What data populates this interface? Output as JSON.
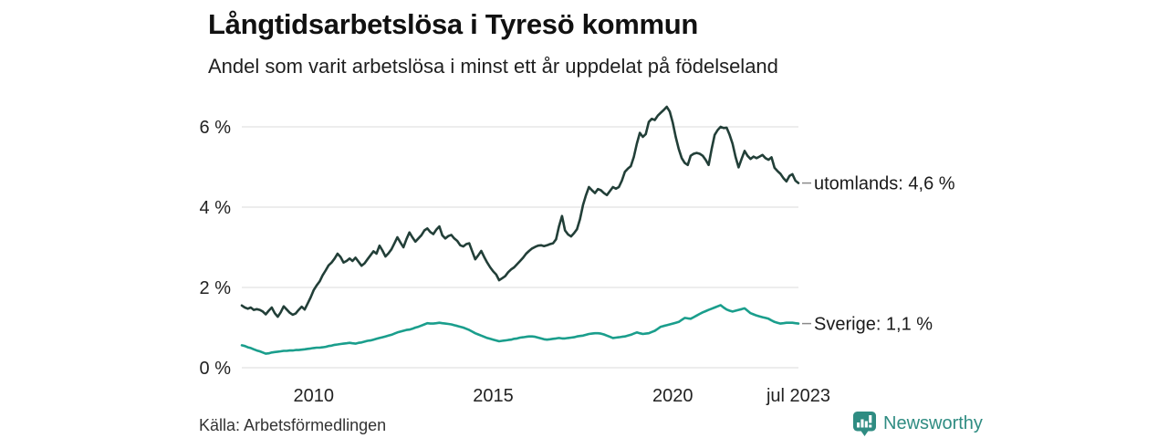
{
  "header": {
    "title": "Långtidsarbetslösa i Tyresö kommun",
    "subtitle": "Andel som varit arbetslösa i minst ett år uppdelat på födelseland"
  },
  "footer": {
    "source": "Källa: Arbetsförmedlingen",
    "brand_name": "Newsworthy",
    "brand_logo_icon": "speech-bubble-bar-chart-icon"
  },
  "colors": {
    "utomlands_line": "#223F38",
    "sverige_line": "#1A9E8C",
    "gridline": "#E2E2E2",
    "axis_text": "#222222",
    "label_text": "#1A1A1A",
    "tick_dash": "#8A8A8A",
    "brand_teal": "#2F8C82"
  },
  "chart_data": {
    "type": "line",
    "title": "Långtidsarbetslösa i Tyresö kommun",
    "subtitle": "Andel som varit arbetslösa i minst ett år uppdelat på födelseland",
    "unit": "%",
    "grid": "horizontal-only",
    "legend_position": "line-end-labels-right",
    "xlim": [
      2008.0,
      2023.58
    ],
    "ylim": [
      0,
      6.6
    ],
    "x_ticks": [
      {
        "t": 2010,
        "label": "2010"
      },
      {
        "t": 2015,
        "label": "2015"
      },
      {
        "t": 2020,
        "label": "2020"
      },
      {
        "t": 2023.5,
        "label": "jul 2023"
      }
    ],
    "y_ticks": [
      {
        "v": 0,
        "label": "0 %"
      },
      {
        "v": 2,
        "label": "2 %"
      },
      {
        "v": 4,
        "label": "4 %"
      },
      {
        "v": 6,
        "label": "6 %"
      }
    ],
    "series": [
      {
        "name": "utomlands",
        "end_label": "utomlands: 4,6 %",
        "latest_value": "4,6 %",
        "color": "#223F38",
        "start_year": 2008,
        "step_months": 1,
        "values": [
          1.55,
          1.5,
          1.47,
          1.5,
          1.44,
          1.46,
          1.44,
          1.4,
          1.33,
          1.42,
          1.5,
          1.36,
          1.27,
          1.38,
          1.53,
          1.45,
          1.37,
          1.32,
          1.35,
          1.44,
          1.52,
          1.45,
          1.6,
          1.75,
          1.93,
          2.05,
          2.15,
          2.3,
          2.42,
          2.55,
          2.62,
          2.72,
          2.84,
          2.76,
          2.62,
          2.66,
          2.72,
          2.66,
          2.74,
          2.64,
          2.54,
          2.6,
          2.7,
          2.8,
          2.9,
          2.84,
          3.04,
          2.92,
          2.77,
          2.85,
          2.95,
          3.1,
          3.25,
          3.12,
          3.0,
          3.2,
          3.37,
          3.25,
          3.14,
          3.22,
          3.3,
          3.42,
          3.47,
          3.38,
          3.33,
          3.44,
          3.52,
          3.3,
          3.22,
          3.28,
          3.31,
          3.22,
          3.16,
          3.05,
          3.02,
          3.08,
          3.1,
          2.9,
          2.7,
          2.8,
          2.91,
          2.76,
          2.62,
          2.5,
          2.4,
          2.32,
          2.18,
          2.23,
          2.28,
          2.38,
          2.45,
          2.5,
          2.58,
          2.66,
          2.74,
          2.84,
          2.91,
          2.97,
          3.01,
          3.04,
          3.05,
          3.03,
          3.05,
          3.08,
          3.1,
          3.2,
          3.52,
          3.78,
          3.42,
          3.32,
          3.27,
          3.35,
          3.45,
          3.7,
          4.05,
          4.3,
          4.5,
          4.42,
          4.35,
          4.45,
          4.42,
          4.35,
          4.3,
          4.4,
          4.5,
          4.46,
          4.5,
          4.66,
          4.88,
          4.96,
          5.02,
          5.25,
          5.58,
          5.85,
          5.75,
          5.82,
          6.12,
          6.2,
          6.17,
          6.28,
          6.35,
          6.42,
          6.5,
          6.38,
          6.1,
          5.75,
          5.45,
          5.22,
          5.1,
          5.05,
          5.28,
          5.33,
          5.35,
          5.33,
          5.28,
          5.18,
          5.05,
          5.45,
          5.8,
          5.92,
          6.0,
          5.97,
          5.98,
          5.8,
          5.58,
          5.25,
          4.99,
          5.2,
          5.4,
          5.28,
          5.2,
          5.26,
          5.22,
          5.26,
          5.3,
          5.22,
          5.18,
          5.24,
          4.98,
          4.9,
          4.83,
          4.72,
          4.64,
          4.78,
          4.82,
          4.66,
          4.6
        ]
      },
      {
        "name": "Sverige",
        "end_label": "Sverige: 1,1 %",
        "latest_value": "1,1 %",
        "color": "#1A9E8C",
        "start_year": 2008,
        "step_months": 1,
        "values": [
          0.56,
          0.54,
          0.51,
          0.49,
          0.46,
          0.43,
          0.41,
          0.38,
          0.35,
          0.36,
          0.38,
          0.39,
          0.4,
          0.41,
          0.42,
          0.42,
          0.43,
          0.43,
          0.44,
          0.44,
          0.45,
          0.46,
          0.47,
          0.48,
          0.49,
          0.5,
          0.5,
          0.51,
          0.52,
          0.54,
          0.55,
          0.57,
          0.58,
          0.59,
          0.6,
          0.61,
          0.62,
          0.61,
          0.6,
          0.62,
          0.63,
          0.65,
          0.67,
          0.68,
          0.7,
          0.72,
          0.74,
          0.76,
          0.78,
          0.8,
          0.82,
          0.85,
          0.88,
          0.9,
          0.92,
          0.94,
          0.95,
          0.97,
          1.0,
          1.02,
          1.05,
          1.08,
          1.11,
          1.1,
          1.1,
          1.11,
          1.12,
          1.11,
          1.1,
          1.09,
          1.08,
          1.06,
          1.04,
          1.02,
          1.0,
          0.97,
          0.94,
          0.9,
          0.86,
          0.83,
          0.8,
          0.77,
          0.74,
          0.72,
          0.7,
          0.68,
          0.66,
          0.67,
          0.68,
          0.69,
          0.7,
          0.72,
          0.73,
          0.75,
          0.76,
          0.77,
          0.78,
          0.78,
          0.77,
          0.75,
          0.73,
          0.71,
          0.7,
          0.71,
          0.72,
          0.73,
          0.74,
          0.73,
          0.73,
          0.74,
          0.75,
          0.76,
          0.78,
          0.79,
          0.8,
          0.82,
          0.84,
          0.85,
          0.86,
          0.86,
          0.85,
          0.83,
          0.8,
          0.77,
          0.74,
          0.75,
          0.76,
          0.77,
          0.78,
          0.8,
          0.82,
          0.85,
          0.88,
          0.86,
          0.84,
          0.85,
          0.86,
          0.89,
          0.92,
          0.97,
          1.02,
          1.04,
          1.06,
          1.08,
          1.1,
          1.12,
          1.14,
          1.19,
          1.24,
          1.23,
          1.22,
          1.26,
          1.3,
          1.34,
          1.38,
          1.41,
          1.44,
          1.47,
          1.5,
          1.53,
          1.56,
          1.5,
          1.45,
          1.42,
          1.4,
          1.42,
          1.44,
          1.46,
          1.48,
          1.42,
          1.36,
          1.33,
          1.3,
          1.28,
          1.26,
          1.24,
          1.22,
          1.18,
          1.14,
          1.12,
          1.1,
          1.11,
          1.12,
          1.12,
          1.12,
          1.11,
          1.1
        ]
      }
    ]
  }
}
